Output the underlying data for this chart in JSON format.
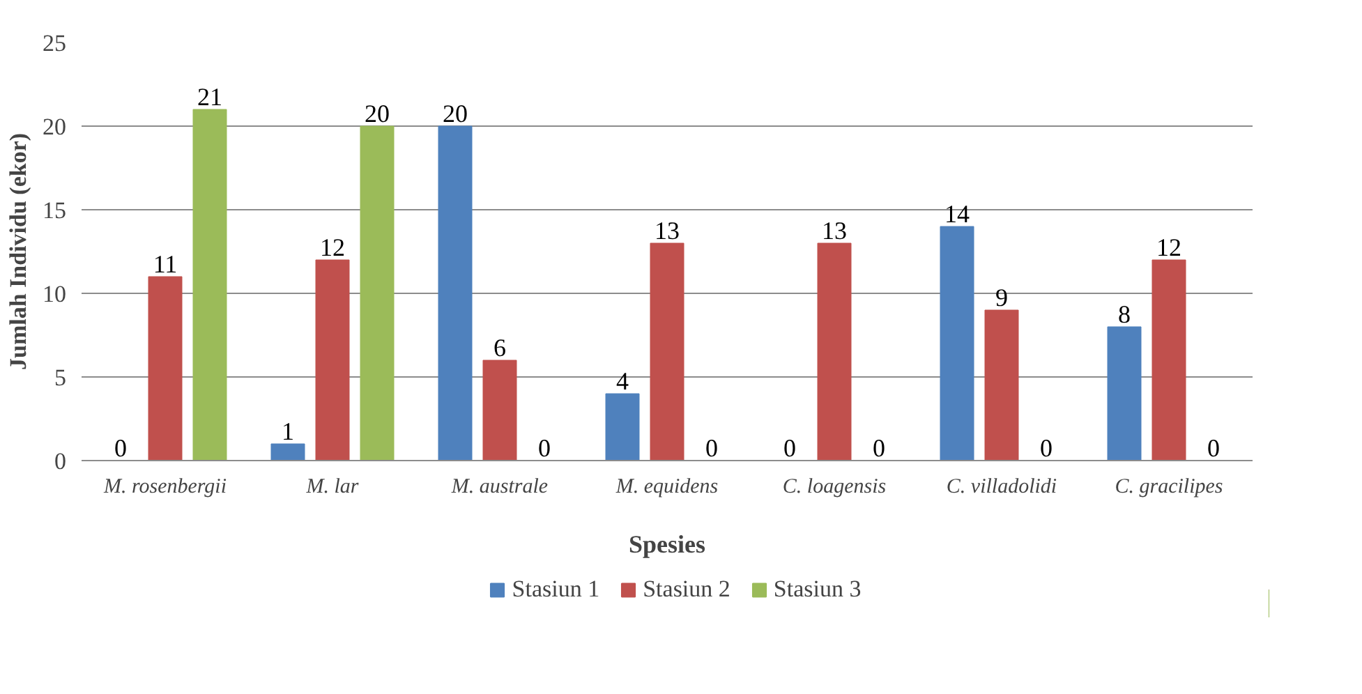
{
  "chart_data": {
    "type": "bar",
    "xlabel": "Spesies",
    "ylabel": "Jumlah Individu (ekor)",
    "categories": [
      "M. rosenbergii",
      "M. lar",
      "M. australe",
      "M. equidens",
      "C. loagensis",
      "C. villadolidi",
      "C. gracilipes"
    ],
    "series": [
      {
        "name": "Stasiun 1",
        "color": "#4f81bd",
        "values": [
          0,
          1,
          20,
          4,
          0,
          14,
          8
        ]
      },
      {
        "name": "Stasiun 2",
        "color": "#c0504d",
        "values": [
          11,
          12,
          6,
          13,
          13,
          9,
          12
        ]
      },
      {
        "name": "Stasiun 3",
        "color": "#9bbb59",
        "values": [
          21,
          20,
          0,
          0,
          0,
          0,
          0
        ]
      }
    ],
    "ylim": [
      0,
      25
    ],
    "yticks": [
      0,
      5,
      10,
      15,
      20,
      25
    ],
    "grid": "y",
    "legend": "bottom",
    "data_labels": true
  }
}
